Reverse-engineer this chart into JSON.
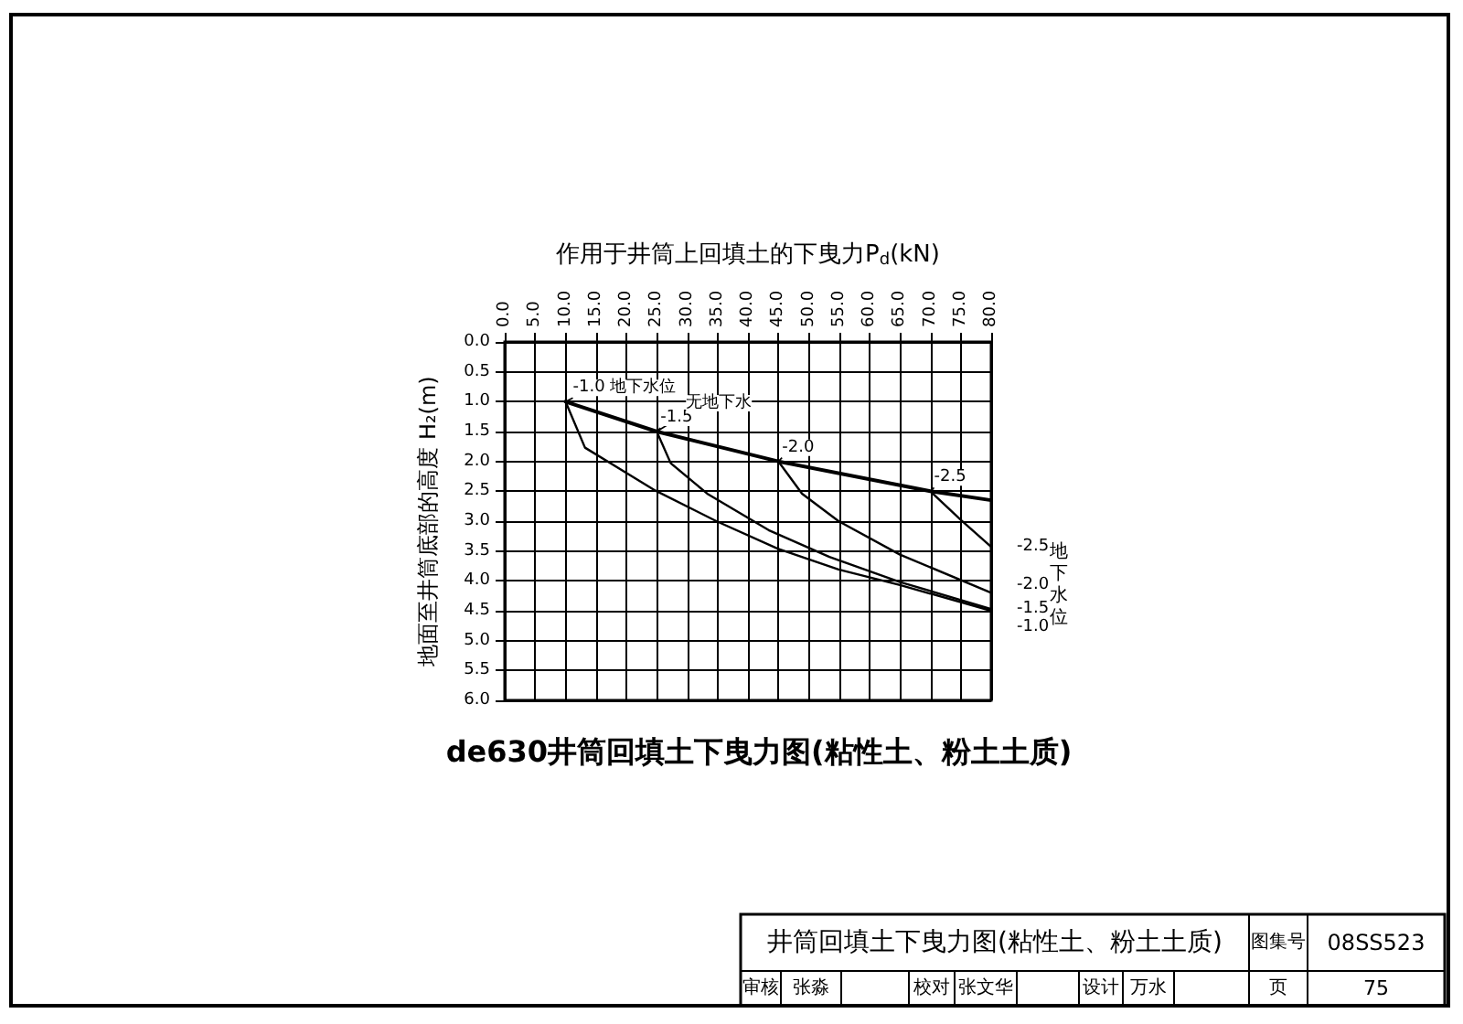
{
  "chart_data": {
    "type": "line",
    "title": "de630井筒回填土下曳力图(粘性土、粉土土质)",
    "xlabel": "作用于井筒上回填土的下曳力P$_{d}$(kN)",
    "ylabel": "地面至井筒底部的高度 H₂(m)",
    "xlim": [
      0,
      80
    ],
    "xticks": [
      {
        "value": 0,
        "label": "0.0"
      },
      {
        "value": 5,
        "label": "5.0"
      },
      {
        "value": 10,
        "label": "10.0"
      },
      {
        "value": 15,
        "label": "15.0"
      },
      {
        "value": 20,
        "label": "20.0"
      },
      {
        "value": 25,
        "label": "25.0"
      },
      {
        "value": 30,
        "label": "30.0"
      },
      {
        "value": 35,
        "label": "35.0"
      },
      {
        "value": 40,
        "label": "40.0"
      },
      {
        "value": 45,
        "label": "45.0"
      },
      {
        "value": 50,
        "label": "50.0"
      },
      {
        "value": 55,
        "label": "55.0"
      },
      {
        "value": 60,
        "label": "60.0"
      },
      {
        "value": 65,
        "label": "65.0"
      },
      {
        "value": 70,
        "label": "70.0"
      },
      {
        "value": 75,
        "label": "75.0"
      },
      {
        "value": 80,
        "label": "80.0"
      }
    ],
    "ylim": [
      6,
      0
    ],
    "yticks": [
      {
        "value": 0,
        "label": "0.0"
      },
      {
        "value": 0.5,
        "label": "0.5"
      },
      {
        "value": 1,
        "label": "1.0"
      },
      {
        "value": 1.5,
        "label": "1.5"
      },
      {
        "value": 2,
        "label": "2.0"
      },
      {
        "value": 2.5,
        "label": "2.5"
      },
      {
        "value": 3,
        "label": "3.0"
      },
      {
        "value": 3.5,
        "label": "3.5"
      },
      {
        "value": 4,
        "label": "4.0"
      },
      {
        "value": 4.5,
        "label": "4.5"
      },
      {
        "value": 5,
        "label": "5.0"
      },
      {
        "value": 5.5,
        "label": "5.5"
      },
      {
        "value": 6,
        "label": "6.0"
      }
    ],
    "grid": true,
    "legend": false,
    "marker": "none",
    "line_style": "solid",
    "series": [
      {
        "name": "-1.0",
        "color": "#000000",
        "x": [
          10,
          13.2,
          24.8,
          34.8,
          44.9,
          54.9,
          65,
          80
        ],
        "values": [
          1.0,
          1.77,
          2.49,
          3.0,
          3.46,
          3.81,
          4.07,
          4.5
        ]
      },
      {
        "name": "-1.5",
        "color": "#000000",
        "x": [
          25,
          27.3,
          33.3,
          43.4,
          53.4,
          65,
          80
        ],
        "values": [
          1.5,
          2.03,
          2.54,
          3.15,
          3.6,
          4.02,
          4.47
        ]
      },
      {
        "name": "-2.0",
        "color": "#000000",
        "x": [
          45,
          48.9,
          54.9,
          65,
          80
        ],
        "values": [
          2.0,
          2.54,
          3.0,
          3.56,
          4.2
        ]
      },
      {
        "name": "-2.5",
        "color": "#000000",
        "x": [
          70,
          75,
          80
        ],
        "values": [
          2.5,
          2.98,
          3.43
        ]
      },
      {
        "color": "#000000",
        "x": [
          10,
          25,
          45,
          70,
          80
        ],
        "values": [
          1.0,
          1.5,
          2.0,
          2.5,
          2.65
        ]
      }
    ],
    "annotations": [
      "-1.0 地下水位",
      "-1.5",
      "无地下水",
      "-2.0",
      "-2.5",
      "地下水位",
      "井筒回填土下曳力图(粘性土、粉土土质)",
      "图集号",
      "08SS523",
      "审核",
      "张淼",
      "校对",
      "张文华",
      "设计",
      "万水",
      "页",
      "75"
    ]
  }
}
